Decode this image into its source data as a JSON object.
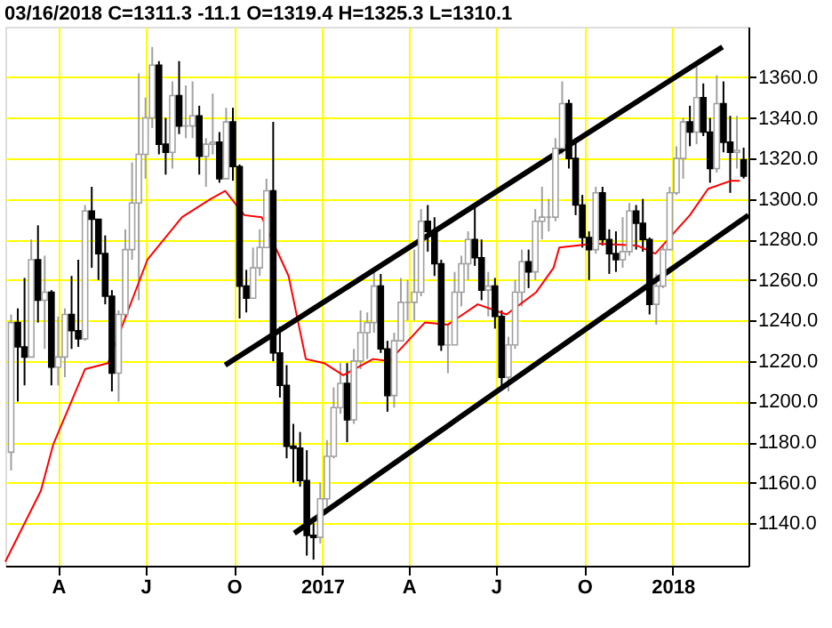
{
  "chart_data": {
    "type": "candlestick",
    "title": "03/16/2018  C=1311.3  -11.1  O=1319.4  H=1325.3  L=1310.1",
    "xlim": [
      "2016-02-06",
      "2018-03-21"
    ],
    "xticks": [
      {
        "value": "2016-04-01",
        "label": "A"
      },
      {
        "value": "2016-07-01",
        "label": "J"
      },
      {
        "value": "2016-10-01",
        "label": "O"
      },
      {
        "value": "2017-01-01",
        "label": "2017"
      },
      {
        "value": "2017-04-01",
        "label": "A"
      },
      {
        "value": "2017-07-01",
        "label": "J"
      },
      {
        "value": "2017-10-01",
        "label": "O"
      },
      {
        "value": "2018-01-01",
        "label": "2018"
      }
    ],
    "ylim": [
      1119,
      1385
    ],
    "yticks": [
      {
        "value": 1140,
        "label": "1140.0"
      },
      {
        "value": 1160,
        "label": "1160.0"
      },
      {
        "value": 1180,
        "label": "1180.0"
      },
      {
        "value": 1200,
        "label": "1200.0"
      },
      {
        "value": 1220,
        "label": "1220.0"
      },
      {
        "value": 1240,
        "label": "1240.0"
      },
      {
        "value": 1260,
        "label": "1260.0"
      },
      {
        "value": 1280,
        "label": "1280.0"
      },
      {
        "value": 1300,
        "label": "1300.0"
      },
      {
        "value": 1320,
        "label": "1320.0"
      },
      {
        "value": 1340,
        "label": "1340.0"
      },
      {
        "value": 1360,
        "label": "1360.0"
      }
    ],
    "grid": true,
    "series": [
      {
        "colors": [
          "#a0a0a0",
          "#000000",
          "#000000",
          "#a0a0a0",
          "#000000",
          "#a0a0a0",
          "#000000",
          "#a0a0a0",
          "#a0a0a0",
          "#000000",
          "#000000",
          "#a0a0a0",
          "#000000",
          "#000000",
          "#000000",
          "#000000",
          "#a0a0a0",
          "#a0a0a0",
          "#a0a0a0",
          "#a0a0a0",
          "#a0a0a0",
          "#a0a0a0",
          "#000000",
          "#000000",
          "#a0a0a0",
          "#000000",
          "#a0a0a0",
          "#a0a0a0",
          "#000000",
          "#a0a0a0",
          "#a0a0a0",
          "#000000",
          "#a0a0a0",
          "#000000",
          "#000000",
          "#000000",
          "#a0a0a0",
          "#a0a0a0",
          "#a0a0a0",
          "#000000",
          "#000000",
          "#000000",
          "#000000",
          "#000000",
          "#000000",
          "#000000",
          "#a0a0a0",
          "#a0a0a0",
          "#a0a0a0",
          "#a0a0a0",
          "#000000",
          "#a0a0a0",
          "#a0a0a0",
          "#a0a0a0",
          "#a0a0a0",
          "#000000",
          "#000000",
          "#a0a0a0",
          "#a0a0a0",
          "#a0a0a0",
          "#a0a0a0",
          "#a0a0a0",
          "#000000",
          "#000000",
          "#000000",
          "#a0a0a0",
          "#a0a0a0",
          "#a0a0a0",
          "#a0a0a0",
          "#000000",
          "#000000",
          "#a0a0a0",
          "#000000",
          "#000000",
          "#a0a0a0",
          "#a0a0a0",
          "#a0a0a0",
          "#000000",
          "#a0a0a0",
          "#a0a0a0",
          "#a0a0a0",
          "#a0a0a0",
          "#a0a0a0",
          "#000000",
          "#000000",
          "#000000",
          "#000000",
          "#a0a0a0",
          "#000000",
          "#000000",
          "#000000",
          "#a0a0a0",
          "#a0a0a0",
          "#000000",
          "#000000",
          "#000000",
          "#a0a0a0",
          "#a0a0a0",
          "#a0a0a0",
          "#a0a0a0",
          "#a0a0a0",
          "#000000",
          "#a0a0a0",
          "#000000",
          "#000000",
          "#a0a0a0",
          "#000000",
          "#000000",
          "#a0a0a0",
          "#000000"
        ],
        "x": [
          "2016-02-12",
          "2016-02-19",
          "2016-02-26",
          "2016-03-04",
          "2016-03-11",
          "2016-03-18",
          "2016-03-25",
          "2016-04-01",
          "2016-04-08",
          "2016-04-15",
          "2016-04-22",
          "2016-04-29",
          "2016-05-06",
          "2016-05-13",
          "2016-05-20",
          "2016-05-27",
          "2016-06-03",
          "2016-06-10",
          "2016-06-17",
          "2016-06-24",
          "2016-07-01",
          "2016-07-08",
          "2016-07-15",
          "2016-07-22",
          "2016-07-29",
          "2016-08-05",
          "2016-08-12",
          "2016-08-19",
          "2016-08-26",
          "2016-09-02",
          "2016-09-09",
          "2016-09-16",
          "2016-09-23",
          "2016-09-30",
          "2016-10-07",
          "2016-10-14",
          "2016-10-21",
          "2016-10-28",
          "2016-11-04",
          "2016-11-11",
          "2016-11-18",
          "2016-11-25",
          "2016-12-02",
          "2016-12-09",
          "2016-12-16",
          "2016-12-23",
          "2016-12-30",
          "2017-01-06",
          "2017-01-13",
          "2017-01-20",
          "2017-01-27",
          "2017-02-03",
          "2017-02-10",
          "2017-02-17",
          "2017-02-24",
          "2017-03-03",
          "2017-03-10",
          "2017-03-17",
          "2017-03-24",
          "2017-03-31",
          "2017-04-07",
          "2017-04-14",
          "2017-04-21",
          "2017-04-28",
          "2017-05-05",
          "2017-05-12",
          "2017-05-19",
          "2017-05-26",
          "2017-06-02",
          "2017-06-09",
          "2017-06-16",
          "2017-06-23",
          "2017-06-30",
          "2017-07-07",
          "2017-07-14",
          "2017-07-21",
          "2017-07-28",
          "2017-08-04",
          "2017-08-11",
          "2017-08-18",
          "2017-08-25",
          "2017-09-01",
          "2017-09-08",
          "2017-09-15",
          "2017-09-22",
          "2017-09-29",
          "2017-10-06",
          "2017-10-13",
          "2017-10-20",
          "2017-10-27",
          "2017-11-03",
          "2017-11-10",
          "2017-11-17",
          "2017-11-24",
          "2017-12-01",
          "2017-12-08",
          "2017-12-15",
          "2017-12-22",
          "2017-12-29",
          "2018-01-05",
          "2018-01-12",
          "2018-01-19",
          "2018-01-26",
          "2018-02-02",
          "2018-02-09",
          "2018-02-16",
          "2018-02-23",
          "2018-03-02",
          "2018-03-09",
          "2018-03-16"
        ],
        "ohlc": [
          [
            1175,
            1243,
            1166,
            1239
          ],
          [
            1239,
            1246,
            1200,
            1227
          ],
          [
            1227,
            1261,
            1208,
            1222
          ],
          [
            1222,
            1280,
            1222,
            1270
          ],
          [
            1270,
            1287,
            1239,
            1250
          ],
          [
            1250,
            1272,
            1226,
            1254
          ],
          [
            1254,
            1255,
            1208,
            1217
          ],
          [
            1217,
            1242,
            1208,
            1222
          ],
          [
            1222,
            1246,
            1212,
            1243
          ],
          [
            1243,
            1262,
            1226,
            1235
          ],
          [
            1235,
            1270,
            1227,
            1231
          ],
          [
            1231,
            1297,
            1230,
            1294
          ],
          [
            1294,
            1306,
            1266,
            1290
          ],
          [
            1290,
            1290,
            1260,
            1273
          ],
          [
            1273,
            1282,
            1248,
            1252
          ],
          [
            1252,
            1255,
            1205,
            1214
          ],
          [
            1214,
            1245,
            1200,
            1243
          ],
          [
            1243,
            1285,
            1241,
            1275
          ],
          [
            1275,
            1318,
            1270,
            1298
          ],
          [
            1298,
            1362,
            1250,
            1322
          ],
          [
            1322,
            1350,
            1310,
            1340
          ],
          [
            1340,
            1375,
            1335,
            1366
          ],
          [
            1366,
            1368,
            1322,
            1327
          ],
          [
            1327,
            1340,
            1312,
            1323
          ],
          [
            1323,
            1358,
            1315,
            1351
          ],
          [
            1351,
            1368,
            1332,
            1336
          ],
          [
            1336,
            1356,
            1330,
            1336
          ],
          [
            1336,
            1358,
            1330,
            1341
          ],
          [
            1341,
            1346,
            1312,
            1321
          ],
          [
            1321,
            1330,
            1306,
            1327
          ],
          [
            1327,
            1352,
            1322,
            1328
          ],
          [
            1328,
            1333,
            1308,
            1310
          ],
          [
            1310,
            1345,
            1310,
            1338
          ],
          [
            1338,
            1345,
            1309,
            1316
          ],
          [
            1316,
            1317,
            1241,
            1257
          ],
          [
            1257,
            1265,
            1244,
            1251
          ],
          [
            1251,
            1276,
            1251,
            1266
          ],
          [
            1266,
            1285,
            1262,
            1276
          ],
          [
            1276,
            1310,
            1276,
            1304
          ],
          [
            1304,
            1338,
            1220,
            1224
          ],
          [
            1224,
            1237,
            1202,
            1208
          ],
          [
            1208,
            1218,
            1172,
            1178
          ],
          [
            1178,
            1189,
            1160,
            1177
          ],
          [
            1177,
            1185,
            1158,
            1161
          ],
          [
            1161,
            1176,
            1124,
            1134
          ],
          [
            1134,
            1140,
            1122,
            1133
          ],
          [
            1133,
            1160,
            1130,
            1152
          ],
          [
            1152,
            1181,
            1148,
            1173
          ],
          [
            1173,
            1207,
            1172,
            1197
          ],
          [
            1197,
            1219,
            1194,
            1209
          ],
          [
            1209,
            1219,
            1180,
            1191
          ],
          [
            1191,
            1226,
            1189,
            1220
          ],
          [
            1220,
            1245,
            1216,
            1234
          ],
          [
            1234,
            1244,
            1221,
            1239
          ],
          [
            1239,
            1264,
            1234,
            1257
          ],
          [
            1257,
            1263,
            1224,
            1226
          ],
          [
            1226,
            1230,
            1195,
            1203
          ],
          [
            1203,
            1234,
            1197,
            1230
          ],
          [
            1230,
            1261,
            1230,
            1249
          ],
          [
            1249,
            1260,
            1240,
            1249
          ],
          [
            1249,
            1275,
            1240,
            1254
          ],
          [
            1254,
            1295,
            1252,
            1289
          ],
          [
            1289,
            1297,
            1274,
            1284
          ],
          [
            1284,
            1291,
            1262,
            1268
          ],
          [
            1268,
            1270,
            1225,
            1228
          ],
          [
            1228,
            1238,
            1214,
            1228
          ],
          [
            1228,
            1264,
            1228,
            1254
          ],
          [
            1254,
            1272,
            1247,
            1268
          ],
          [
            1268,
            1284,
            1260,
            1280
          ],
          [
            1280,
            1297,
            1267,
            1271
          ],
          [
            1271,
            1280,
            1250,
            1255
          ],
          [
            1255,
            1264,
            1242,
            1257
          ],
          [
            1257,
            1261,
            1236,
            1242
          ],
          [
            1242,
            1245,
            1208,
            1212
          ],
          [
            1212,
            1232,
            1205,
            1228
          ],
          [
            1228,
            1260,
            1226,
            1254
          ],
          [
            1254,
            1275,
            1247,
            1269
          ],
          [
            1269,
            1275,
            1256,
            1264
          ],
          [
            1264,
            1295,
            1260,
            1289
          ],
          [
            1289,
            1306,
            1280,
            1291
          ],
          [
            1291,
            1300,
            1284,
            1291
          ],
          [
            1291,
            1330,
            1289,
            1325
          ],
          [
            1325,
            1358,
            1322,
            1347
          ],
          [
            1347,
            1349,
            1315,
            1320
          ],
          [
            1320,
            1330,
            1292,
            1297
          ],
          [
            1297,
            1302,
            1276,
            1281
          ],
          [
            1281,
            1284,
            1260,
            1275
          ],
          [
            1275,
            1306,
            1273,
            1303
          ],
          [
            1303,
            1306,
            1277,
            1280
          ],
          [
            1280,
            1285,
            1263,
            1273
          ],
          [
            1273,
            1284,
            1264,
            1270
          ],
          [
            1270,
            1291,
            1266,
            1274
          ],
          [
            1274,
            1298,
            1272,
            1294
          ],
          [
            1294,
            1297,
            1275,
            1288
          ],
          [
            1288,
            1300,
            1274,
            1280
          ],
          [
            1280,
            1281,
            1243,
            1248
          ],
          [
            1248,
            1263,
            1238,
            1257
          ],
          [
            1257,
            1277,
            1256,
            1275
          ],
          [
            1275,
            1306,
            1275,
            1303
          ],
          [
            1303,
            1326,
            1302,
            1320
          ],
          [
            1320,
            1340,
            1310,
            1338
          ],
          [
            1338,
            1346,
            1326,
            1333
          ],
          [
            1333,
            1366,
            1327,
            1350
          ],
          [
            1350,
            1357,
            1331,
            1333
          ],
          [
            1333,
            1340,
            1308,
            1315
          ],
          [
            1315,
            1361,
            1313,
            1347
          ],
          [
            1347,
            1358,
            1323,
            1328
          ],
          [
            1328,
            1341,
            1303,
            1323
          ],
          [
            1323,
            1341,
            1315,
            1324
          ],
          [
            1319.4,
            1325.3,
            1310.1,
            1311.3
          ]
        ]
      },
      {
        "type": "line",
        "color": "#ff0000",
        "x": [
          "2016-02-06",
          "2016-03-14",
          "2016-03-27",
          "2016-04-29",
          "2016-05-23",
          "2016-07-03",
          "2016-08-08",
          "2016-09-07",
          "2016-09-22",
          "2016-10-12",
          "2016-10-30",
          "2016-11-27",
          "2016-12-15",
          "2017-01-03",
          "2017-01-23",
          "2017-02-23",
          "2017-03-12",
          "2017-04-18",
          "2017-05-12",
          "2017-06-12",
          "2017-07-12",
          "2017-08-12",
          "2017-08-30",
          "2017-09-05",
          "2017-10-12",
          "2017-11-25",
          "2017-12-14",
          "2018-01-19",
          "2018-02-07",
          "2018-03-03",
          "2018-03-12"
        ],
        "values": [
          1121,
          1156,
          1179,
          1216,
          1219,
          1270,
          1291,
          1300,
          1304,
          1292,
          1291,
          1262,
          1221,
          1219,
          1213,
          1221,
          1220,
          1239,
          1238,
          1248,
          1243,
          1254,
          1266,
          1276,
          1278,
          1277,
          1273,
          1292,
          1305,
          1309,
          1309
        ]
      },
      {
        "type": "line",
        "color": "#000000",
        "x": [
          "2016-09-22",
          "2018-02-22"
        ],
        "values": [
          1218,
          1375
        ]
      },
      {
        "type": "line",
        "color": "#000000",
        "x": [
          "2016-12-03",
          "2018-03-21"
        ],
        "values": [
          1135,
          1292
        ]
      }
    ]
  }
}
